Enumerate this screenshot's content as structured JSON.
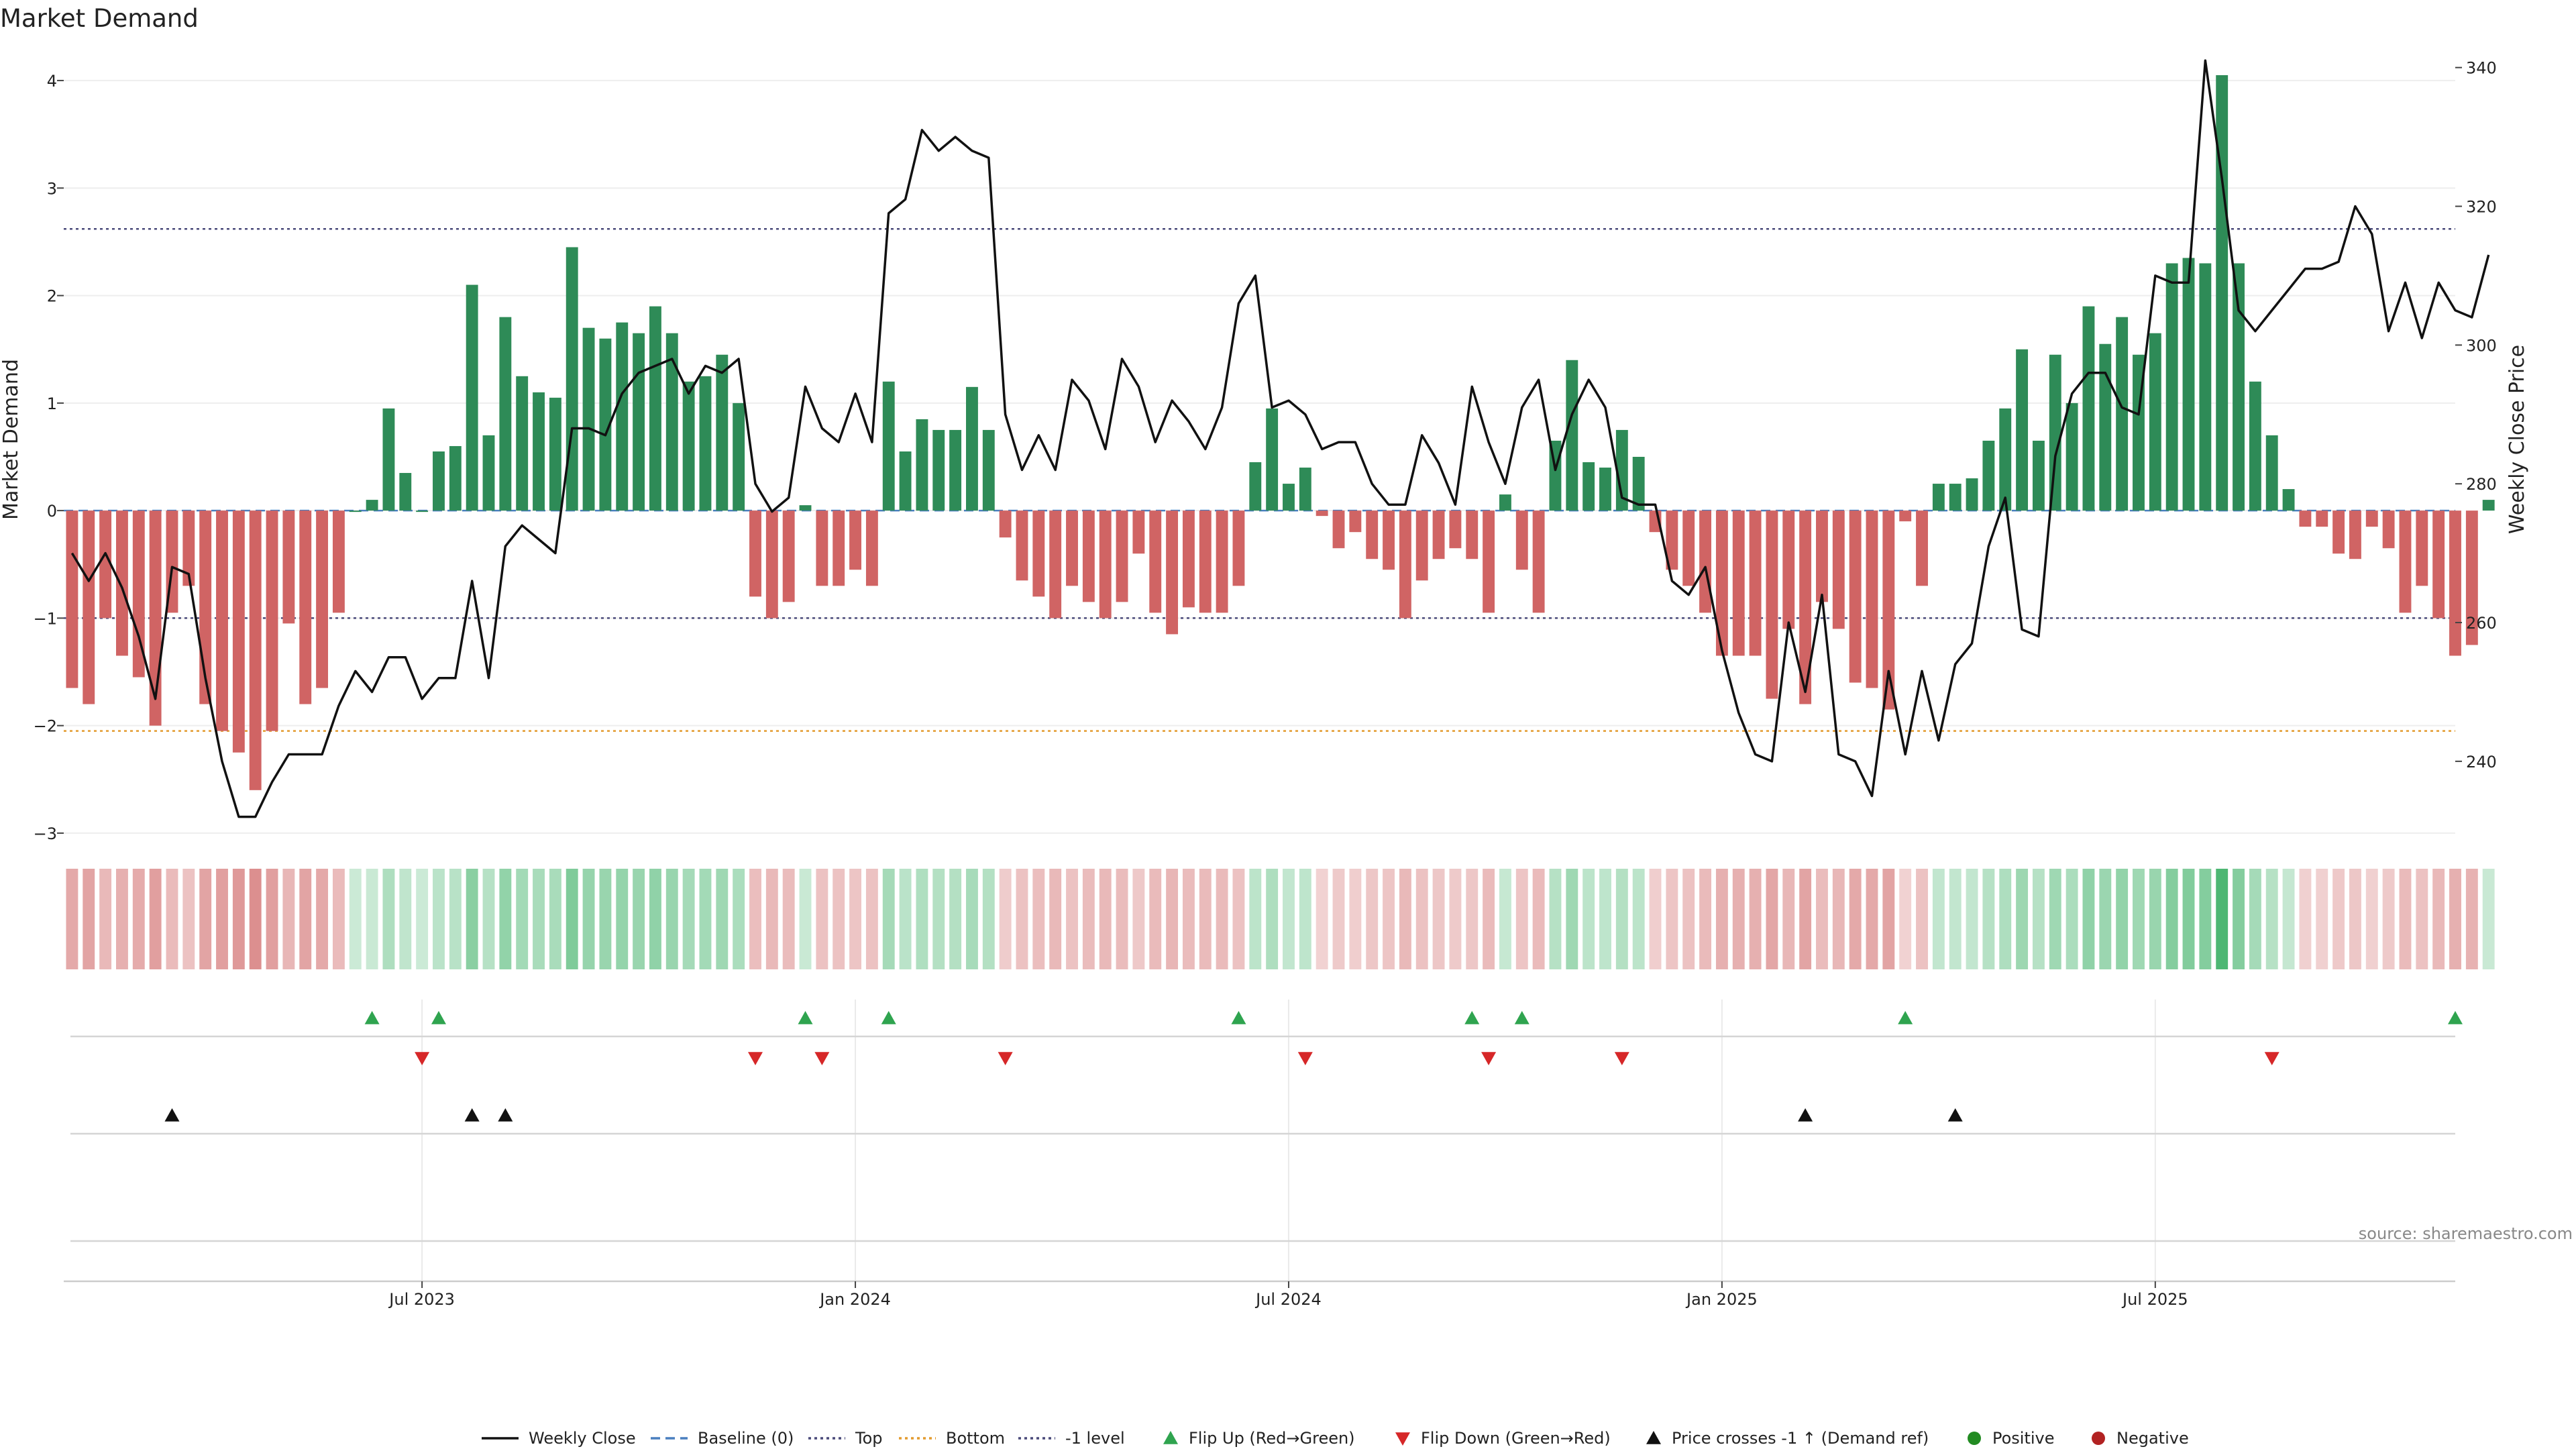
{
  "chart_data": {
    "type": "bar",
    "title": "Market Demand",
    "ylabel": "Market Demand",
    "y2label": "Weekly Close Price",
    "ylim": [
      -3.3,
      4.25
    ],
    "y2lim": [
      225,
      342
    ],
    "yticks": [
      4,
      3,
      2,
      1,
      0,
      -1,
      -2,
      -3
    ],
    "y2ticks": [
      340,
      320,
      300,
      280,
      260,
      240
    ],
    "xlim": [
      0,
      143.5
    ],
    "xticks": [
      {
        "label": "Jul 2023",
        "x": 21
      },
      {
        "label": "Jan 2024",
        "x": 47
      },
      {
        "label": "Jul 2024",
        "x": 73
      },
      {
        "label": "Jan 2025",
        "x": 99
      },
      {
        "label": "Jul 2025",
        "x": 125
      }
    ],
    "reference_lines": [
      {
        "name": "Top",
        "value": 2.62,
        "color": "#4a4a7a"
      },
      {
        "name": "-1 level",
        "value": -1.0,
        "color": "#4a4a7a"
      },
      {
        "name": "Bottom",
        "value": -2.05,
        "color": "#e39b2f"
      }
    ],
    "demand": [
      -1.65,
      -1.8,
      -1.0,
      -1.35,
      -1.55,
      -2.0,
      -0.95,
      -0.7,
      -1.8,
      -2.05,
      -2.25,
      -2.6,
      -2.05,
      -1.05,
      -1.8,
      -1.65,
      -0.95,
      0.0,
      0.1,
      0.95,
      0.35,
      0.0,
      0.55,
      0.6,
      2.1,
      0.7,
      1.8,
      1.25,
      1.1,
      1.05,
      2.45,
      1.7,
      1.6,
      1.75,
      1.65,
      1.9,
      1.65,
      1.2,
      1.25,
      1.45,
      1.0,
      -0.8,
      -1.0,
      -0.85,
      0.05,
      -0.7,
      -0.7,
      -0.55,
      -0.7,
      1.2,
      0.55,
      0.85,
      0.75,
      0.75,
      1.15,
      0.75,
      -0.25,
      -0.65,
      -0.8,
      -1.0,
      -0.7,
      -0.85,
      -1.0,
      -0.85,
      -0.4,
      -0.95,
      -1.15,
      -0.9,
      -0.95,
      -0.95,
      -0.7,
      0.45,
      0.95,
      0.25,
      0.4,
      -0.05,
      -0.35,
      -0.2,
      -0.45,
      -0.55,
      -1.0,
      -0.65,
      -0.45,
      -0.35,
      -0.45,
      -0.95,
      0.15,
      -0.55,
      -0.95,
      0.65,
      1.4,
      0.45,
      0.4,
      0.75,
      0.5,
      -0.2,
      -0.55,
      -0.7,
      -0.95,
      -1.35,
      -1.35,
      -1.35,
      -1.75,
      -1.1,
      -1.8,
      -0.85,
      -1.1,
      -1.6,
      -1.65,
      -1.85,
      -0.1,
      -0.7,
      0.25,
      0.25,
      0.3,
      0.65,
      0.95,
      1.5,
      0.65,
      1.45,
      1.0,
      1.9,
      1.55,
      1.8,
      1.45,
      1.65,
      2.3,
      2.35,
      2.3,
      4.05,
      2.3,
      1.2,
      0.7,
      0.2,
      -0.15,
      -0.15,
      -0.4,
      -0.45,
      -0.15,
      -0.35,
      -0.95,
      -0.7,
      -1.0,
      -1.35,
      -1.25,
      0.1
    ],
    "close": [
      270,
      266,
      270,
      265,
      258,
      249,
      268,
      267,
      252,
      240,
      232,
      232,
      237,
      241,
      241,
      241,
      248,
      253,
      250,
      255,
      255,
      249,
      252,
      252,
      266,
      252,
      271,
      274,
      272,
      270,
      288,
      288,
      287,
      293,
      296,
      297,
      298,
      293,
      297,
      296,
      298,
      280,
      276,
      278,
      294,
      288,
      286,
      293,
      286,
      319,
      321,
      331,
      328,
      330,
      328,
      327,
      290,
      282,
      287,
      282,
      295,
      292,
      285,
      298,
      294,
      286,
      292,
      289,
      285,
      291,
      306,
      310,
      291,
      292,
      290,
      285,
      286,
      286,
      280,
      277,
      277,
      287,
      283,
      277,
      294,
      286,
      280,
      291,
      295,
      282,
      290,
      295,
      291,
      278,
      277,
      277,
      266,
      264,
      268,
      256,
      247,
      241,
      240,
      260,
      250,
      264,
      241,
      240,
      235,
      253,
      241,
      253,
      243,
      254,
      257,
      271,
      278,
      259,
      258,
      284,
      293,
      296,
      296,
      291,
      290,
      310,
      309,
      309,
      341,
      324,
      305,
      302,
      305,
      308,
      311,
      311,
      312,
      320,
      316,
      302,
      309,
      301,
      309,
      305,
      304,
      313
    ],
    "flip_up": [
      18,
      22,
      44,
      49,
      70,
      84,
      87,
      110,
      143
    ],
    "flip_down": [
      21,
      41,
      45,
      56,
      74,
      85,
      93,
      132
    ],
    "price_crosses": [
      6,
      24,
      26,
      104,
      113
    ],
    "legend": [
      "Weekly Close",
      "Baseline (0)",
      "Top",
      "Bottom",
      "-1 level",
      "Flip Up (Red→Green)",
      "Flip Down (Green→Red)",
      "Price crosses -1 ↑ (Demand ref)",
      "Positive",
      "Negative"
    ],
    "source": "source: sharemaestro.com",
    "colors": {
      "positive": "#2e8b57",
      "negative": "#d06464",
      "line": "#111111",
      "flip_up": "#2fa44f",
      "flip_down": "#d62728",
      "cross": "#111111",
      "baseline": "#4a7fbf",
      "positive_dot": "#228b22",
      "negative_dot": "#b22222"
    }
  }
}
